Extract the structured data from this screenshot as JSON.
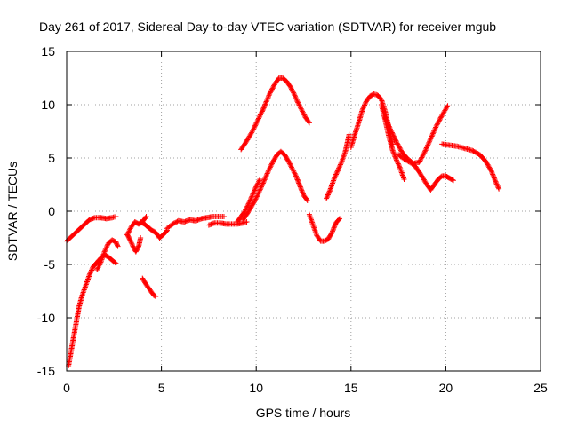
{
  "chart_data": {
    "type": "scatter",
    "title": "Day 261 of 2017, Sidereal Day-to-day VTEC variation (SDTVAR) for receiver mgub",
    "xlabel": "GPS time / hours",
    "ylabel": "SDTVAR / TECUs",
    "xlim": [
      0,
      25
    ],
    "ylim": [
      -15,
      15
    ],
    "xticks": [
      0,
      5,
      10,
      15,
      20,
      25
    ],
    "yticks": [
      -15,
      -10,
      -5,
      0,
      5,
      10,
      15
    ],
    "grid": true,
    "marker": "+",
    "color": "#ff0000",
    "series": [
      {
        "name": "arc-1",
        "x": [
          0.0,
          0.3,
          0.6,
          0.9,
          1.2,
          1.5,
          1.8,
          2.1,
          2.4,
          2.6
        ],
        "y": [
          -2.8,
          -2.3,
          -1.8,
          -1.3,
          -0.8,
          -0.6,
          -0.6,
          -0.7,
          -0.6,
          -0.5
        ]
      },
      {
        "name": "arc-2",
        "x": [
          0.1,
          0.2,
          0.35,
          0.5,
          0.65,
          0.8,
          1.0,
          1.2,
          1.4,
          1.6,
          1.8,
          2.0,
          2.2,
          2.4,
          2.6
        ],
        "y": [
          -14.5,
          -13.5,
          -12.0,
          -10.5,
          -9.0,
          -8.0,
          -7.0,
          -6.0,
          -5.2,
          -4.8,
          -4.4,
          -4.1,
          -4.3,
          -4.6,
          -4.9
        ]
      },
      {
        "name": "arc-3",
        "x": [
          1.6,
          1.8,
          2.0,
          2.2,
          2.4,
          2.6,
          2.7
        ],
        "y": [
          -5.5,
          -4.8,
          -3.8,
          -3.0,
          -2.7,
          -2.9,
          -3.3
        ]
      },
      {
        "name": "arc-4",
        "x": [
          3.2,
          3.35,
          3.5,
          3.65,
          3.8,
          3.9
        ],
        "y": [
          -2.2,
          -2.7,
          -3.3,
          -3.8,
          -3.3,
          -2.5
        ]
      },
      {
        "name": "arc-5",
        "x": [
          3.2,
          3.4,
          3.6,
          3.8,
          4.0,
          4.2
        ],
        "y": [
          -2.2,
          -1.5,
          -1.0,
          -1.2,
          -1.0,
          -0.5
        ]
      },
      {
        "name": "arc-6",
        "x": [
          3.9,
          4.1,
          4.3,
          4.5,
          4.7,
          4.9,
          5.1,
          5.3
        ],
        "y": [
          -1.0,
          -1.2,
          -1.5,
          -1.8,
          -2.0,
          -2.5,
          -2.2,
          -1.8
        ]
      },
      {
        "name": "arc-7",
        "x": [
          4.0,
          4.2,
          4.4,
          4.6,
          4.7
        ],
        "y": [
          -6.3,
          -6.9,
          -7.4,
          -7.9,
          -8.0
        ]
      },
      {
        "name": "arc-8",
        "x": [
          5.3,
          5.6,
          5.9,
          6.2,
          6.5,
          6.8,
          7.1,
          7.4,
          7.7,
          8.0,
          8.3
        ],
        "y": [
          -1.6,
          -1.2,
          -0.9,
          -1.0,
          -0.8,
          -0.9,
          -0.7,
          -0.6,
          -0.5,
          -0.5,
          -0.5
        ]
      },
      {
        "name": "arc-9",
        "x": [
          7.5,
          7.8,
          8.1,
          8.4,
          8.7,
          9.0,
          9.3,
          9.5
        ],
        "y": [
          -1.3,
          -1.1,
          -1.1,
          -1.2,
          -1.2,
          -1.2,
          -1.1,
          -1.0
        ]
      },
      {
        "name": "arc-10",
        "x": [
          9.3,
          9.5,
          9.7,
          9.9,
          10.1,
          10.3,
          10.5,
          10.7,
          10.9,
          11.1,
          11.3,
          11.5,
          11.7,
          11.9,
          12.1,
          12.3,
          12.5,
          12.7
        ],
        "y": [
          -0.8,
          -0.3,
          0.3,
          0.9,
          1.6,
          2.4,
          3.2,
          4.0,
          4.7,
          5.3,
          5.6,
          5.3,
          4.7,
          4.0,
          3.3,
          2.4,
          1.5,
          1.0
        ]
      },
      {
        "name": "arc-11",
        "x": [
          9.0,
          9.2,
          9.4,
          9.6,
          9.8,
          10.0,
          10.2
        ],
        "y": [
          -1.0,
          -0.5,
          0.0,
          0.7,
          1.5,
          2.3,
          3.0
        ]
      },
      {
        "name": "arc-12",
        "x": [
          9.2,
          9.5,
          9.8,
          10.1,
          10.4,
          10.7,
          11.0,
          11.2,
          11.4,
          11.6,
          11.8,
          12.0,
          12.2,
          12.4,
          12.6,
          12.8
        ],
        "y": [
          5.8,
          6.6,
          7.5,
          8.6,
          9.7,
          11.0,
          12.0,
          12.5,
          12.5,
          12.2,
          11.7,
          11.0,
          10.2,
          9.5,
          8.8,
          8.3
        ]
      },
      {
        "name": "arc-13",
        "x": [
          12.8,
          13.0,
          13.2,
          13.4,
          13.6,
          13.8,
          14.0,
          14.2,
          14.4
        ],
        "y": [
          -0.3,
          -1.3,
          -2.3,
          -2.8,
          -2.8,
          -2.6,
          -2.0,
          -1.1,
          -0.7
        ]
      },
      {
        "name": "arc-14",
        "x": [
          13.7,
          13.9,
          14.1,
          14.3,
          14.5,
          14.7,
          14.9
        ],
        "y": [
          1.2,
          2.0,
          3.0,
          3.8,
          4.6,
          5.6,
          7.2
        ]
      },
      {
        "name": "arc-15",
        "x": [
          15.0,
          15.2,
          15.4,
          15.6,
          15.8,
          16.0,
          16.2,
          16.4,
          16.6,
          16.8,
          17.0,
          17.2
        ],
        "y": [
          6.0,
          7.2,
          8.3,
          9.5,
          10.3,
          10.8,
          11.0,
          10.9,
          10.5,
          9.4,
          7.8,
          6.3
        ]
      },
      {
        "name": "arc-16",
        "x": [
          16.6,
          16.8,
          17.0,
          17.2,
          17.4,
          17.6,
          17.8
        ],
        "y": [
          10.0,
          8.6,
          7.0,
          5.7,
          4.8,
          4.0,
          3.0
        ]
      },
      {
        "name": "arc-17",
        "x": [
          16.8,
          17.1,
          17.4,
          17.7,
          18.0,
          18.3,
          18.6,
          18.9,
          19.2,
          19.5,
          19.8,
          20.1
        ],
        "y": [
          8.8,
          7.6,
          6.5,
          5.5,
          4.9,
          4.5,
          4.6,
          5.6,
          6.8,
          8.0,
          9.0,
          9.9
        ]
      },
      {
        "name": "arc-18",
        "x": [
          17.5,
          17.8,
          18.1,
          18.4,
          18.7,
          19.0,
          19.2,
          19.4,
          19.6,
          19.8,
          20.0,
          20.2,
          20.4
        ],
        "y": [
          5.3,
          4.9,
          4.6,
          4.2,
          3.4,
          2.5,
          2.0,
          2.5,
          3.0,
          3.3,
          3.3,
          3.1,
          2.9
        ]
      },
      {
        "name": "arc-19",
        "x": [
          19.8,
          20.2,
          20.6,
          21.0,
          21.4,
          21.8,
          22.1,
          22.4,
          22.6,
          22.8
        ],
        "y": [
          6.3,
          6.2,
          6.1,
          5.9,
          5.7,
          5.3,
          4.7,
          3.8,
          2.9,
          2.1
        ]
      }
    ]
  }
}
